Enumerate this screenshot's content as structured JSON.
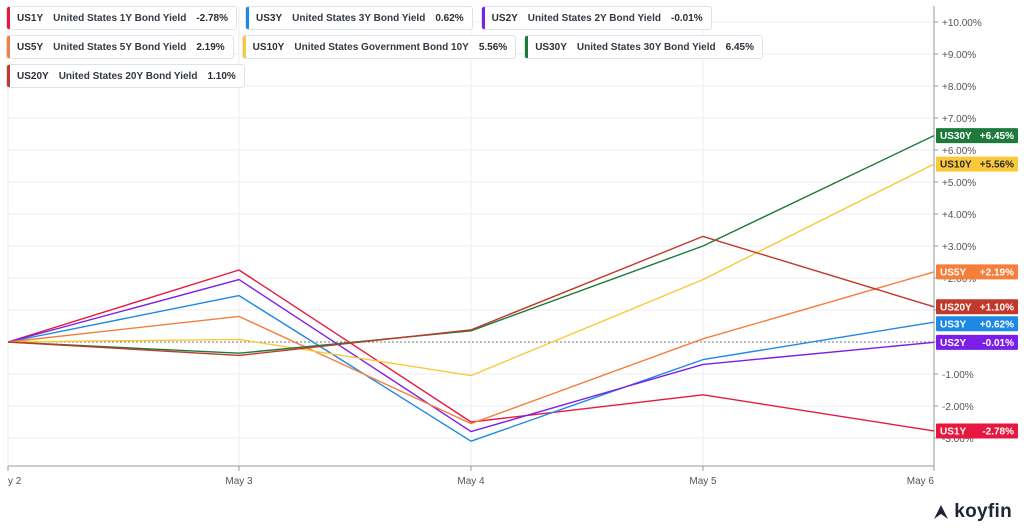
{
  "chart_data": {
    "type": "line",
    "x": [
      "y 2",
      "May 3",
      "May 4",
      "May 5",
      "May 6"
    ],
    "ylim": [
      -4,
      10.5
    ],
    "yticks": [
      "+10.00%",
      "+9.00%",
      "+8.00%",
      "+7.00%",
      "+6.00%",
      "+5.00%",
      "+4.00%",
      "+3.00%",
      "+2.00%",
      "+1.00%",
      "",
      "-1.00%",
      "-2.00%",
      "-3.00%"
    ],
    "ytick_values": [
      10,
      9,
      8,
      7,
      6,
      5,
      4,
      3,
      2,
      1,
      0,
      -1,
      -2,
      -3
    ],
    "zero_line": "dotted",
    "grid": true,
    "legend_position": "top-left",
    "series": [
      {
        "ticker": "US1Y",
        "name": "United States 1Y Bond Yield",
        "change": "-2.78%",
        "badge": "-2.78%",
        "color": "#e8173f",
        "values": [
          0,
          2.25,
          -2.5,
          -1.65,
          -2.78
        ]
      },
      {
        "ticker": "US3Y",
        "name": "United States 3Y Bond Yield",
        "change": "0.62%",
        "badge": "+0.62%",
        "color": "#1e88e5",
        "values": [
          0,
          1.45,
          -3.1,
          -0.55,
          0.62
        ]
      },
      {
        "ticker": "US2Y",
        "name": "United States 2Y Bond Yield",
        "change": "-0.01%",
        "badge": "-0.01%",
        "color": "#7b1fe8",
        "values": [
          0,
          1.95,
          -2.8,
          -0.7,
          -0.01
        ]
      },
      {
        "ticker": "US5Y",
        "name": "United States 5Y Bond Yield",
        "change": "2.19%",
        "badge": "+2.19%",
        "color": "#f57f3a",
        "values": [
          0,
          0.8,
          -2.55,
          0.1,
          2.19
        ]
      },
      {
        "ticker": "US10Y",
        "name": "United States Government Bond 10Y",
        "change": "5.56%",
        "badge": "+5.56%",
        "color": "#f9c93a",
        "values": [
          0,
          0.08,
          -1.05,
          1.95,
          5.56
        ]
      },
      {
        "ticker": "US30Y",
        "name": "United States 30Y Bond Yield",
        "change": "6.45%",
        "badge": "+6.45%",
        "color": "#1e7a3a",
        "values": [
          0,
          -0.35,
          0.35,
          3.0,
          6.45
        ]
      },
      {
        "ticker": "US20Y",
        "name": "United States 20Y Bond Yield",
        "change": "1.10%",
        "badge": "+1.10%",
        "color": "#c0392b",
        "values": [
          0,
          -0.42,
          0.38,
          3.3,
          1.1
        ]
      }
    ]
  },
  "legend_rows": [
    [
      0,
      1,
      2
    ],
    [
      3,
      4,
      5
    ],
    [
      6
    ]
  ],
  "logo": {
    "text": "koyfin",
    "icon": "koyfin-logo-icon"
  }
}
